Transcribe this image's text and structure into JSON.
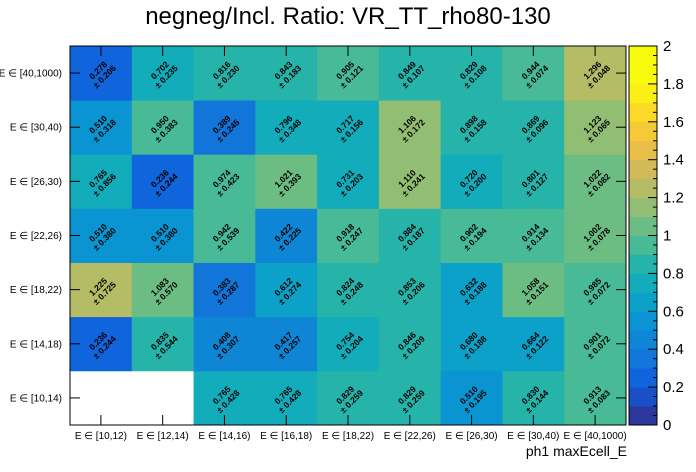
{
  "chart_data": {
    "type": "heatmap",
    "title": "negneg/Incl. Ratio: VR_TT_rho80-130",
    "xlabel": "ph1 maxEcell_E",
    "ylabel": "",
    "x_categories": [
      "E ∈ [10,12)",
      "E ∈ [12,14)",
      "E ∈ [14,16)",
      "E ∈ [16,18)",
      "E ∈ [18,22)",
      "E ∈ [22,26)",
      "E ∈ [26,30)",
      "E ∈ [30,40)",
      "E ∈ [40,1000)"
    ],
    "y_categories": [
      "E ∈ [10,14)",
      "E ∈ [14,18)",
      "E ∈ [18,22)",
      "E ∈ [22,26)",
      "E ∈ [26,30)",
      "E ∈ [30,40)",
      "E ∈ [40,1000)"
    ],
    "zlim": [
      0,
      2
    ],
    "z_ticks": [
      "0",
      "0.2",
      "0.4",
      "0.6",
      "0.8",
      "1",
      "1.2",
      "1.4",
      "1.6",
      "1.8",
      "2"
    ],
    "values": [
      [
        null,
        null,
        0.765,
        0.765,
        0.829,
        0.829,
        0.51,
        0.83,
        0.913
      ],
      [
        0.236,
        0.835,
        0.408,
        0.417,
        0.754,
        0.846,
        0.68,
        0.664,
        0.901
      ],
      [
        1.225,
        1.083,
        0.383,
        0.612,
        0.824,
        0.853,
        0.632,
        1.058,
        0.985
      ],
      [
        0.51,
        0.51,
        0.942,
        0.422,
        0.918,
        0.884,
        0.902,
        0.914,
        1.002
      ],
      [
        0.765,
        0.236,
        0.974,
        1.021,
        0.731,
        1.11,
        0.72,
        0.801,
        1.022
      ],
      [
        0.51,
        0.95,
        0.389,
        0.796,
        0.717,
        1.106,
        0.898,
        0.869,
        1.123
      ],
      [
        0.278,
        0.702,
        0.816,
        0.843,
        0.905,
        0.849,
        0.829,
        0.944,
        1.296
      ]
    ],
    "labels": [
      [
        null,
        null,
        "0.765",
        "0.765",
        "0.829",
        "0.829",
        "0.510",
        "0.830",
        "0.913"
      ],
      [
        "0.236",
        "0.835",
        "0.408",
        "0.417",
        "0.754",
        "0.846",
        "0.680",
        "0.664",
        "0.901"
      ],
      [
        "1.225",
        "1.083",
        "0.383",
        "0.612",
        "0.824",
        "0.853",
        "0.632",
        "1.058",
        "0.985"
      ],
      [
        "0.510",
        "0.510",
        "0.942",
        "0.422",
        "0.918",
        "0.884",
        "0.902",
        "0.914",
        "1.002"
      ],
      [
        "0.765",
        "0.236",
        "0.974",
        "1.021",
        "0.731",
        "1.110",
        "0.720",
        "0.801",
        "1.022"
      ],
      [
        "0.510",
        "0.950",
        "0.389",
        "0.796",
        "0.717",
        "1.106",
        "0.898",
        "0.869",
        "1.123"
      ],
      [
        "0.278",
        "0.702",
        "0.816",
        "0.843",
        "0.905",
        "0.849",
        "0.829",
        "0.944",
        "1.296"
      ]
    ],
    "errors": [
      [
        null,
        null,
        "0.428",
        "0.428",
        "0.259",
        "0.259",
        "0.195",
        "0.144",
        "0.083"
      ],
      [
        "0.244",
        "0.544",
        "0.307",
        "0.257",
        "0.204",
        "0.209",
        "0.188",
        "0.122",
        "0.072"
      ],
      [
        "0.725",
        "0.570",
        "0.287",
        "0.274",
        "0.248",
        "0.206",
        "0.188",
        "0.151",
        "0.072"
      ],
      [
        "0.380",
        "0.380",
        "0.539",
        "0.225",
        "0.247",
        "0.187",
        "0.194",
        "0.134",
        "0.078"
      ],
      [
        "0.856",
        "0.244",
        "0.423",
        "0.393",
        "0.203",
        "0.241",
        "0.200",
        "0.127",
        "0.082"
      ],
      [
        "0.318",
        "0.383",
        "0.245",
        "0.348",
        "0.156",
        "0.172",
        "0.158",
        "0.096",
        "0.065"
      ],
      [
        "0.206",
        "0.235",
        "0.230",
        "0.183",
        "0.121",
        "0.107",
        "0.108",
        "0.074",
        "0.048"
      ]
    ]
  }
}
